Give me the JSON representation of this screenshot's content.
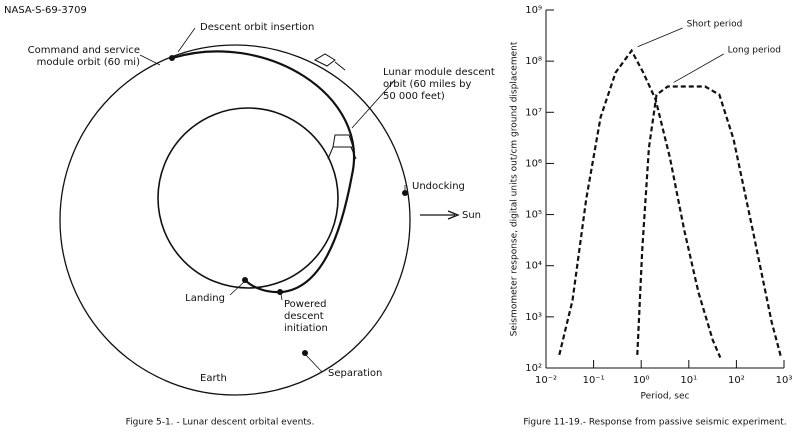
{
  "header_id": "NASA-S-69-3709",
  "diagram": {
    "labels": {
      "descent_orbit_insertion": [
        "Descent orbit insertion"
      ],
      "csm_orbit": [
        "Command and service",
        "module orbit (60 mi)"
      ],
      "lm_descent_orbit": [
        "Lunar module descent",
        "orbit (60 miles by",
        "50 000 feet)"
      ],
      "undocking": [
        "Undocking"
      ],
      "sun": [
        "Sun"
      ],
      "landing": [
        "Landing"
      ],
      "powered_descent": [
        "Powered",
        "descent",
        "initiation"
      ],
      "earth": [
        "Earth"
      ],
      "separation": [
        "Separation"
      ]
    },
    "caption": "Figure 5-1. - Lunar descent orbital events."
  },
  "chart_data": {
    "type": "line",
    "x_label": "Period, sec",
    "y_label": "Seismometer response, digital units out/cm ground displacement",
    "caption": "Figure 11-19.- Response from passive seismic experiment.",
    "x_scale": "log",
    "y_scale": "log",
    "line_style": "dashed",
    "xlim": [
      0.01,
      1000
    ],
    "ylim": [
      100,
      1000000000
    ],
    "xticks": [
      {
        "value": 0.01,
        "label": "10⁻²"
      },
      {
        "value": 0.1,
        "label": "10⁻¹"
      },
      {
        "value": 1,
        "label": "10⁰"
      },
      {
        "value": 10,
        "label": "10¹"
      },
      {
        "value": 100,
        "label": "10²"
      },
      {
        "value": 1000,
        "label": "10³"
      }
    ],
    "yticks": [
      {
        "value": 100,
        "label": "10²"
      },
      {
        "value": 1000,
        "label": "10³"
      },
      {
        "value": 10000,
        "label": "10⁴"
      },
      {
        "value": 100000,
        "label": "10⁵"
      },
      {
        "value": 1000000,
        "label": "10⁶"
      },
      {
        "value": 10000000,
        "label": "10⁷"
      },
      {
        "value": 100000000,
        "label": "10⁸"
      },
      {
        "value": 1000000000,
        "label": "10⁹"
      }
    ],
    "series": [
      {
        "name": "Short period",
        "color": "#111111",
        "x": [
          0.019,
          0.036,
          0.07,
          0.14,
          0.29,
          0.63,
          1.1,
          2,
          4,
          8,
          16,
          32,
          46
        ],
        "values": [
          180,
          2100,
          200000,
          8000000,
          60000000,
          160000000,
          60000000,
          18000000,
          1300000,
          50000,
          3000,
          350,
          160
        ]
      },
      {
        "name": "Long period",
        "color": "#111111",
        "x": [
          0.83,
          1.05,
          1.45,
          2.1,
          3.6,
          22,
          44,
          87,
          220,
          550,
          870
        ],
        "values": [
          180,
          20000,
          2000000,
          22000000,
          32000000,
          32000000,
          22000000,
          3000000,
          50000,
          800,
          160
        ]
      }
    ]
  }
}
